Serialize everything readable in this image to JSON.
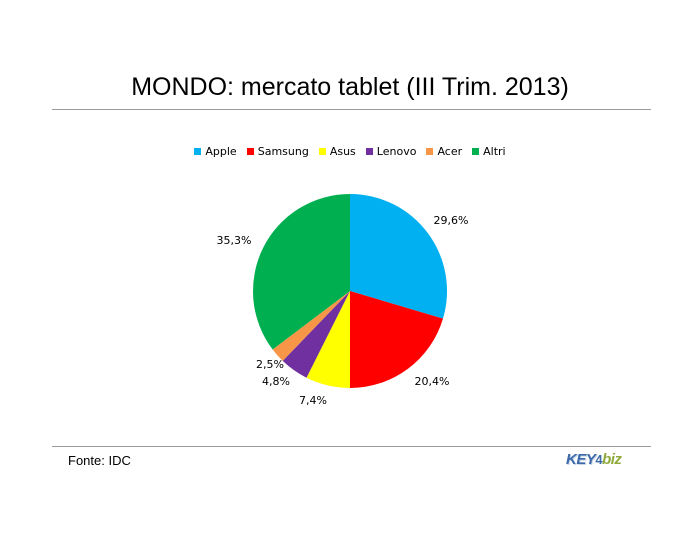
{
  "title": "MONDO: mercato tablet (III Trim. 2013)",
  "source": "Fonte: IDC",
  "logo": {
    "part1": "KEY",
    "part2": "4",
    "part3": "biz"
  },
  "chart_data": {
    "type": "pie",
    "title": "MONDO: mercato tablet (III Trim. 2013)",
    "legend_position": "top",
    "categories": [
      "Apple",
      "Samsung",
      "Asus",
      "Lenovo",
      "Acer",
      "Altri"
    ],
    "values": [
      29.6,
      20.4,
      7.4,
      4.8,
      2.5,
      35.3
    ],
    "labels": [
      "29,6%",
      "20,4%",
      "7,4%",
      "4,8%",
      "2,5%",
      "35,3%"
    ],
    "colors": [
      "#00b0f0",
      "#ff0000",
      "#ffff00",
      "#7030a0",
      "#f79646",
      "#00b050"
    ]
  }
}
